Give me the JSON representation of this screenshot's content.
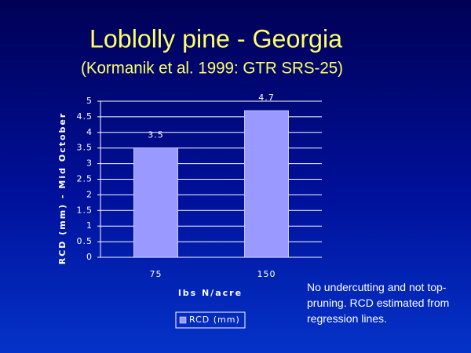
{
  "chart_data": {
    "type": "bar",
    "title": "Loblolly pine - Georgia",
    "subtitle": "(Kormanik et al. 1999: GTR SRS-25)",
    "x_label": "lbs N/acre",
    "y_label": "RCD (mm) - Mid October",
    "categories": [
      "75",
      "150"
    ],
    "series": [
      {
        "name": "RCD (mm)",
        "color": "#9999ff",
        "values": [
          3.5,
          4.7
        ]
      }
    ],
    "ylim": [
      0,
      5
    ],
    "yticks": [
      0,
      0.5,
      1,
      1.5,
      2,
      2.5,
      3,
      3.5,
      4,
      4.5,
      5
    ],
    "grid": true,
    "legend": "bottom",
    "annotation": "No undercutting and not top-pruning.  RCD estimated from regression lines."
  }
}
